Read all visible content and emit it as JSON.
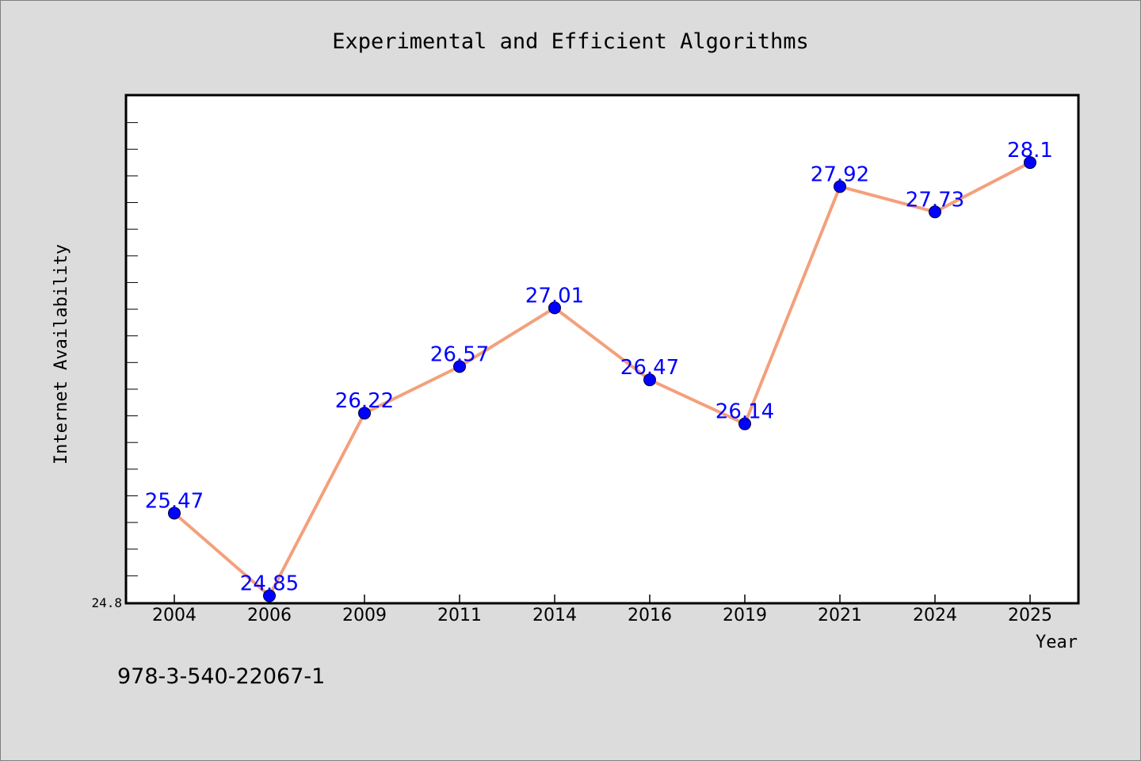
{
  "chart_data": {
    "type": "line",
    "title": "Experimental and Efficient Algorithms",
    "xlabel": "Year",
    "ylabel": "Internet Availability",
    "categories": [
      "2004",
      "2006",
      "2009",
      "2011",
      "2014",
      "2016",
      "2019",
      "2021",
      "2024",
      "2025"
    ],
    "series": [
      {
        "values": [
          25.47,
          24.85,
          26.22,
          26.57,
          27.01,
          26.47,
          26.14,
          27.92,
          27.73,
          28.1
        ],
        "labels": [
          "25.47",
          "24.85",
          "26.22",
          "26.57",
          "27.01",
          "26.47",
          "26.14",
          "27.92",
          "27.73",
          "28.1"
        ],
        "line_color": "#f4a07c",
        "marker_color": "#0000ff"
      }
    ],
    "ylim": [
      24.8,
      28.6
    ],
    "yticks": [
      "24.8"
    ],
    "grid": false,
    "legend": "none"
  },
  "footnote": "978-3-540-22067-1",
  "colors": {
    "background": "#dcdcdc",
    "plot_background": "#ffffff",
    "line": "#f4a07c",
    "marker": "#0000ff",
    "data_label": "#0000ff"
  }
}
